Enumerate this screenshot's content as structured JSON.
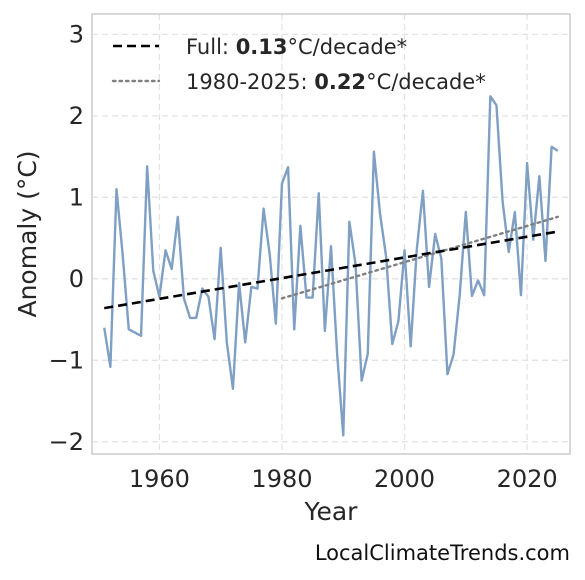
{
  "chart_data": {
    "type": "line",
    "xlabel": "Year",
    "ylabel": "Anomaly (°C)",
    "xlim": [
      1949,
      2027
    ],
    "ylim": [
      -2.15,
      3.25
    ],
    "xticks": [
      1960,
      1980,
      2000,
      2020
    ],
    "xtick_labels": [
      "1960",
      "1980",
      "2000",
      "2020"
    ],
    "yticks": [
      -2,
      -1,
      0,
      1,
      2,
      3
    ],
    "ytick_labels": [
      "−2",
      "−1",
      "0",
      "1",
      "2",
      "3"
    ],
    "grid": true,
    "legend_position": "top-left",
    "series": [
      {
        "color": "#7f9fc3",
        "x": [
          1951,
          1952,
          1953,
          1954,
          1955,
          1956,
          1957,
          1958,
          1959,
          1960,
          1961,
          1962,
          1963,
          1964,
          1965,
          1966,
          1967,
          1968,
          1969,
          1970,
          1971,
          1972,
          1973,
          1974,
          1975,
          1976,
          1977,
          1978,
          1979,
          1980,
          1981,
          1982,
          1983,
          1984,
          1985,
          1986,
          1987,
          1988,
          1989,
          1990,
          1991,
          1992,
          1993,
          1994,
          1995,
          1996,
          1997,
          1998,
          1999,
          2000,
          2001,
          2002,
          2003,
          2004,
          2005,
          2006,
          2007,
          2008,
          2009,
          2010,
          2011,
          2012,
          2013,
          2014,
          2015,
          2016,
          2017,
          2018,
          2019,
          2020,
          2021,
          2022,
          2023,
          2024,
          2025
        ],
        "y": [
          -0.6,
          -1.08,
          1.1,
          0.3,
          -0.62,
          -0.66,
          -0.7,
          1.38,
          0.1,
          -0.22,
          0.35,
          0.12,
          0.76,
          -0.24,
          -0.48,
          -0.48,
          -0.12,
          -0.22,
          -0.74,
          0.38,
          -0.78,
          -1.35,
          -0.05,
          -0.78,
          -0.1,
          -0.12,
          0.86,
          0.3,
          -0.55,
          1.17,
          1.37,
          -0.62,
          0.65,
          -0.23,
          -0.23,
          1.05,
          -0.64,
          0.4,
          -0.92,
          -1.92,
          0.7,
          0.18,
          -1.25,
          -0.92,
          1.56,
          0.8,
          0.27,
          -0.8,
          -0.52,
          0.35,
          -0.83,
          0.36,
          1.08,
          -0.1,
          0.55,
          0.25,
          -1.17,
          -0.93,
          -0.2,
          0.82,
          -0.21,
          -0.02,
          -0.2,
          2.24,
          2.13,
          0.95,
          0.33,
          0.82,
          -0.2,
          1.42,
          0.48,
          1.26,
          0.22,
          1.62,
          1.57
        ]
      },
      {
        "name": "Full",
        "style": "dashed",
        "color": "#000000",
        "rate": "0.13",
        "unit": "°C/decade*",
        "x": [
          1951,
          2025
        ],
        "y": [
          -0.36,
          0.58
        ]
      },
      {
        "name": "1980-2025",
        "style": "dotted",
        "color": "#808080",
        "rate": "0.22",
        "unit": "°C/decade*",
        "x": [
          1980,
          2025
        ],
        "y": [
          -0.24,
          0.76
        ]
      }
    ]
  },
  "watermark": "LocalClimateTrends.com"
}
